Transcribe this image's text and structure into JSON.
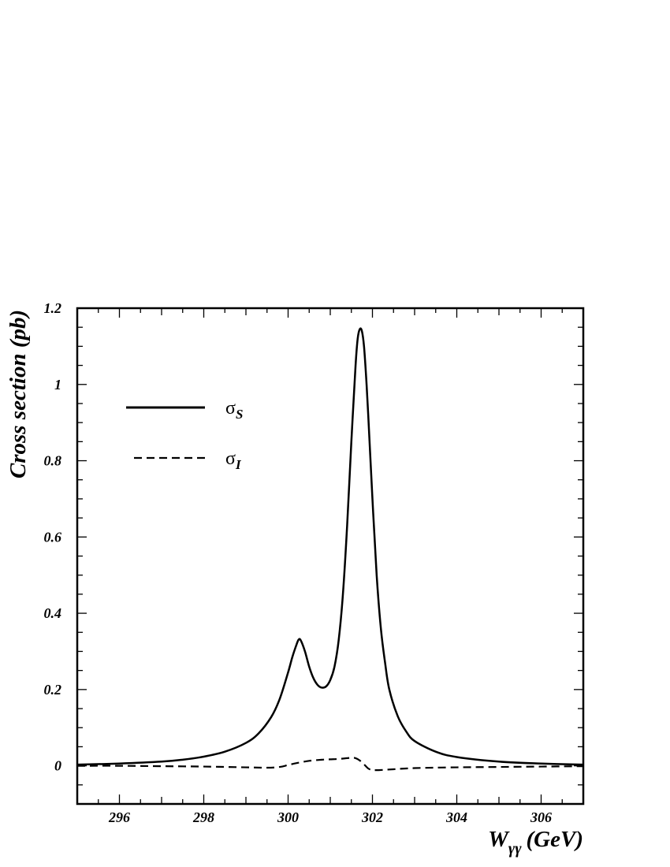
{
  "chart_data": {
    "type": "line",
    "xlabel": "W",
    "xlabel_subscript": "γγ",
    "xlabel_unit": "(GeV)",
    "ylabel": "Cross section (pb)",
    "xlim": [
      295,
      307
    ],
    "ylim": [
      -0.1,
      1.2
    ],
    "x_ticks": [
      296,
      298,
      300,
      302,
      304,
      306
    ],
    "x_tick_labels": [
      "296",
      "298",
      "300",
      "302",
      "304",
      "306"
    ],
    "y_ticks": [
      0,
      0.2,
      0.4,
      0.6,
      0.8,
      1,
      1.2
    ],
    "y_tick_labels": [
      "0",
      "0.2",
      "0.4",
      "0.6",
      "0.8",
      "1",
      "1.2"
    ],
    "grid": false,
    "legend_position": "top-left",
    "series": [
      {
        "name": "σS",
        "legend_symbol": "σ",
        "legend_subscript": "S",
        "style": "solid",
        "color": "#000000",
        "x": [
          295,
          296,
          297,
          297.5,
          298,
          298.5,
          299,
          299.3,
          299.6,
          299.8,
          300,
          300.1,
          300.2,
          300.25,
          300.3,
          300.4,
          300.5,
          300.6,
          300.7,
          300.8,
          300.9,
          301,
          301.1,
          301.2,
          301.3,
          301.4,
          301.5,
          301.6,
          301.65,
          301.7,
          301.75,
          301.8,
          301.85,
          301.9,
          302,
          302.1,
          302.2,
          302.3,
          302.4,
          302.6,
          302.8,
          303,
          303.5,
          304,
          305,
          306,
          307
        ],
        "y": [
          0.003,
          0.006,
          0.011,
          0.016,
          0.024,
          0.037,
          0.06,
          0.085,
          0.128,
          0.175,
          0.245,
          0.285,
          0.318,
          0.331,
          0.329,
          0.3,
          0.26,
          0.23,
          0.212,
          0.205,
          0.208,
          0.225,
          0.26,
          0.33,
          0.45,
          0.63,
          0.85,
          1.05,
          1.12,
          1.145,
          1.14,
          1.1,
          1.02,
          0.92,
          0.7,
          0.5,
          0.36,
          0.27,
          0.2,
          0.13,
          0.09,
          0.065,
          0.037,
          0.023,
          0.011,
          0.006,
          0.003
        ]
      },
      {
        "name": "σI",
        "legend_symbol": "σ",
        "legend_subscript": "I",
        "style": "dashed",
        "color": "#000000",
        "x": [
          295,
          296,
          297,
          298,
          299,
          299.5,
          299.8,
          300,
          300.2,
          300.5,
          300.8,
          301,
          301.2,
          301.5,
          301.6,
          301.7,
          301.8,
          301.9,
          302,
          302.2,
          302.5,
          303,
          304,
          305,
          306,
          307
        ],
        "y": [
          0,
          0,
          -0.001,
          -0.002,
          -0.004,
          -0.005,
          -0.003,
          0.002,
          0.007,
          0.013,
          0.016,
          0.017,
          0.018,
          0.021,
          0.02,
          0.014,
          0.004,
          -0.007,
          -0.011,
          -0.011,
          -0.009,
          -0.006,
          -0.004,
          -0.003,
          -0.002,
          -0.001
        ]
      }
    ]
  }
}
